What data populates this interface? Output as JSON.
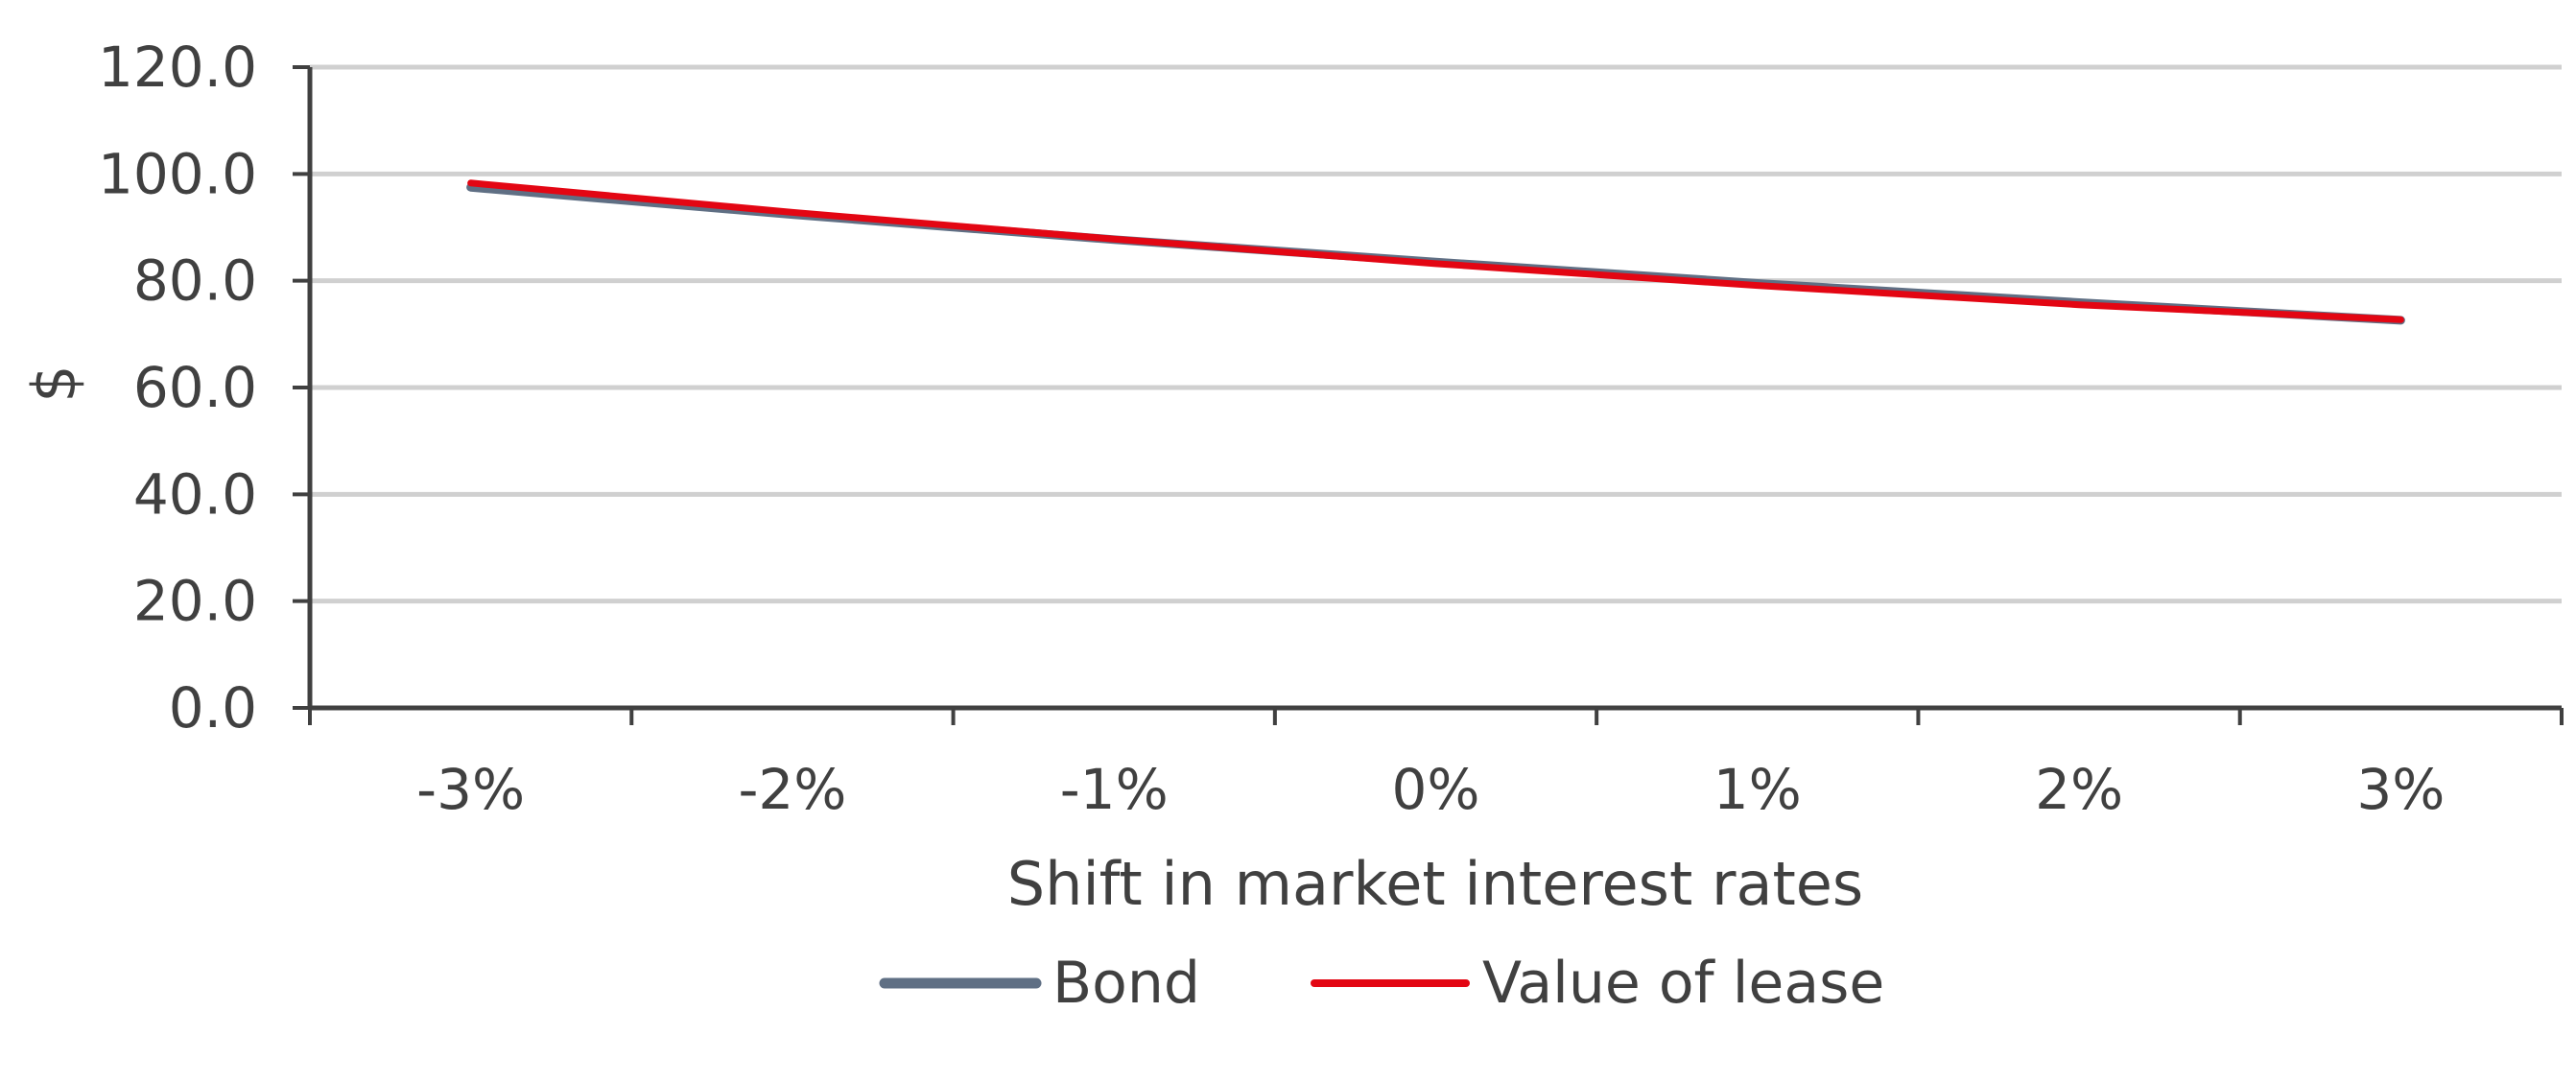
{
  "chart_data": {
    "type": "line",
    "title": "",
    "xlabel": "Shift in market interest rates",
    "ylabel": "$",
    "categories": [
      "-3%",
      "-2%",
      "-1%",
      "0%",
      "1%",
      "2%",
      "3%"
    ],
    "ylim": [
      0,
      120
    ],
    "yticks": [
      "0.0",
      "20.0",
      "40.0",
      "60.0",
      "80.0",
      "100.0",
      "120.0"
    ],
    "grid": true,
    "legend_position": "bottom",
    "series": [
      {
        "name": "Bond",
        "color": "#5f6f84",
        "values": [
          97.5,
          92.4,
          87.7,
          83.5,
          79.5,
          75.9,
          72.6
        ]
      },
      {
        "name": "Value of lease",
        "color": "#e30613",
        "values": [
          98.3,
          92.8,
          87.8,
          83.2,
          79.1,
          75.5,
          72.7
        ]
      }
    ]
  }
}
